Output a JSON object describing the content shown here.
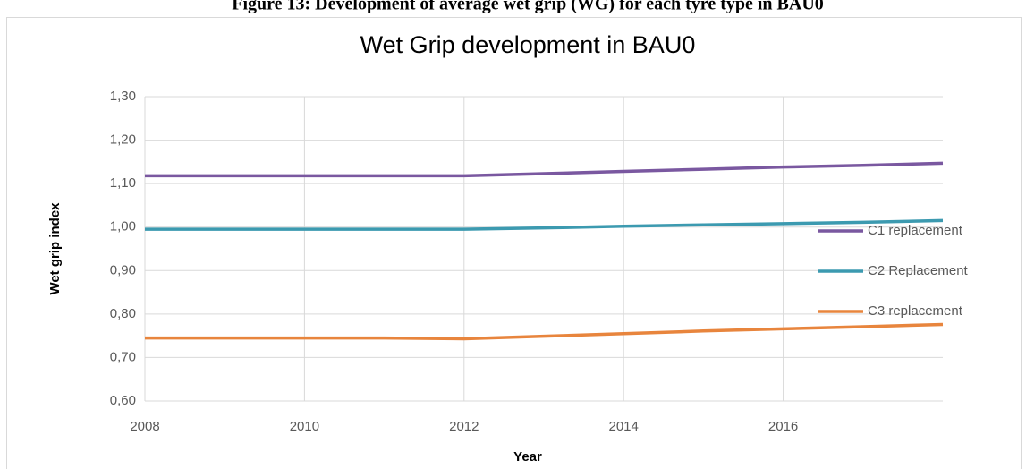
{
  "caption": "Figure 13: Development of average wet grip (WG) for each tyre type in BAU0",
  "chart_data": {
    "type": "line",
    "title": "Wet Grip development in BAU0",
    "x_label": "Year",
    "y_label": "Wet grip index",
    "x": [
      2008,
      2009,
      2010,
      2011,
      2012,
      2013,
      2014,
      2015,
      2016,
      2017,
      2018
    ],
    "series": [
      {
        "name": "C1 replacement",
        "color": "#7a58a0",
        "values": [
          1.118,
          1.118,
          1.118,
          1.118,
          1.118,
          1.123,
          1.128,
          1.133,
          1.138,
          1.142,
          1.147
        ]
      },
      {
        "name": "C2 Replacement",
        "color": "#3c9ab0",
        "values": [
          0.995,
          0.995,
          0.995,
          0.995,
          0.995,
          0.998,
          1.002,
          1.005,
          1.008,
          1.011,
          1.015
        ]
      },
      {
        "name": "C3 replacement",
        "color": "#e8853d",
        "values": [
          0.745,
          0.745,
          0.745,
          0.745,
          0.743,
          0.749,
          0.755,
          0.761,
          0.766,
          0.771,
          0.776
        ]
      }
    ],
    "xlim": [
      2008,
      2018
    ],
    "xticks": [
      2008,
      2010,
      2012,
      2014,
      2016
    ],
    "ylim": [
      0.6,
      1.3
    ],
    "yticks": [
      {
        "value": 0.6,
        "label": "0,60"
      },
      {
        "value": 0.7,
        "label": "0,70"
      },
      {
        "value": 0.8,
        "label": "0,80"
      },
      {
        "value": 0.9,
        "label": "0,90"
      },
      {
        "value": 1.0,
        "label": "1,00"
      },
      {
        "value": 1.1,
        "label": "1,10"
      },
      {
        "value": 1.2,
        "label": "1,20"
      },
      {
        "value": 1.3,
        "label": "1,30"
      }
    ],
    "grid": true,
    "legend": "right"
  }
}
